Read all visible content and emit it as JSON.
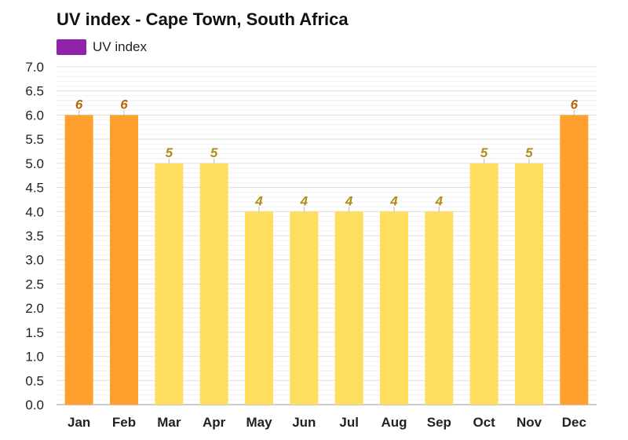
{
  "chart_data": {
    "type": "bar",
    "title": "UV index - Cape Town, South Africa",
    "legend": [
      {
        "name": "UV index",
        "color": "#8e24aa"
      }
    ],
    "legend_position": "top-left",
    "categories": [
      "Jan",
      "Feb",
      "Mar",
      "Apr",
      "May",
      "Jun",
      "Jul",
      "Aug",
      "Sep",
      "Oct",
      "Nov",
      "Dec"
    ],
    "series": [
      {
        "name": "UV index",
        "values": [
          6,
          6,
          5,
          5,
          4,
          4,
          4,
          4,
          4,
          5,
          5,
          6
        ]
      }
    ],
    "data_labels": [
      "6",
      "6",
      "5",
      "5",
      "4",
      "4",
      "4",
      "4",
      "4",
      "5",
      "5",
      "6"
    ],
    "ylim": [
      0,
      7
    ],
    "yticks": [
      "0.0",
      "0.5",
      "1.0",
      "1.5",
      "2.0",
      "2.5",
      "3.0",
      "3.5",
      "4.0",
      "4.5",
      "5.0",
      "5.5",
      "6.0",
      "6.5",
      "7.0"
    ],
    "grid": true,
    "xlabel": "",
    "ylabel": "",
    "colors": {
      "high_bar": "#ff9f2e",
      "high_label": "#b8650a",
      "moderate_bar": "#ffdd5f",
      "moderate_label": "#b08d18",
      "grid": "#e6e6e6",
      "axis": "#999999"
    }
  }
}
